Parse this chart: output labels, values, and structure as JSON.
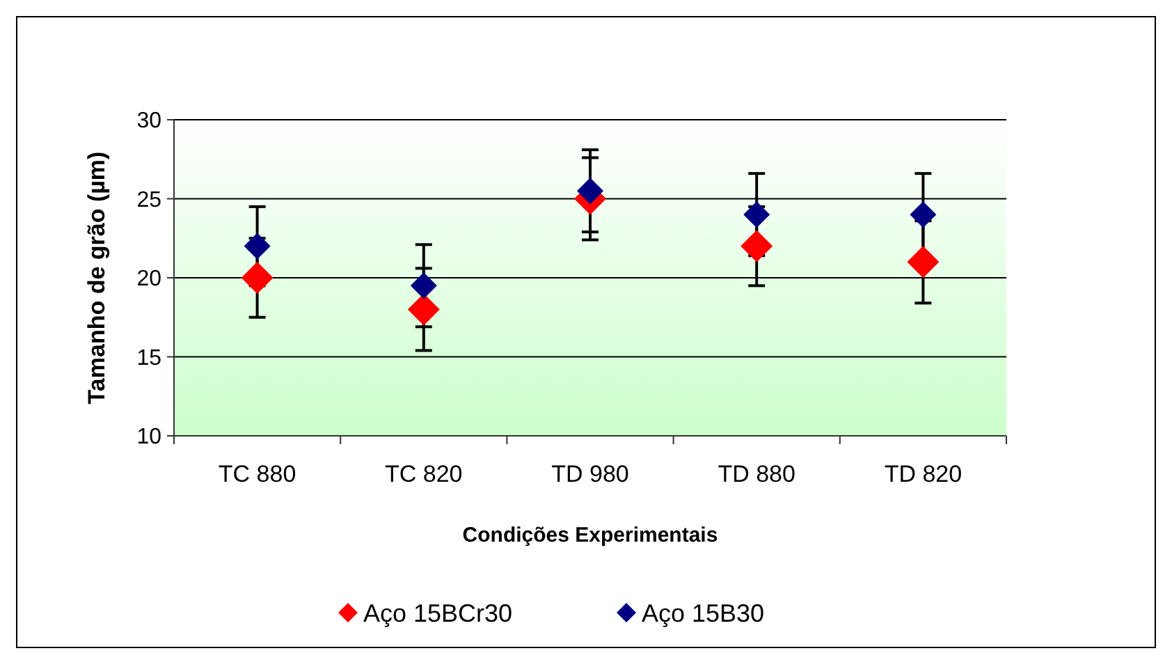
{
  "chart_data": {
    "type": "scatter",
    "xlabel": "Condições Experimentais",
    "ylabel": "Tamanho de grão (µm)",
    "categories": [
      "TC 880",
      "TC 820",
      "TD 980",
      "TD 880",
      "TD 820"
    ],
    "series": [
      {
        "name": "Aço 15BCr30",
        "color": "#ff0000",
        "values": [
          20,
          18,
          25,
          22,
          21
        ],
        "errors": [
          2.5,
          2.6,
          2.6,
          2.5,
          2.6
        ]
      },
      {
        "name": "Aço 15B30",
        "color": "#000080",
        "values": [
          22,
          19.5,
          25.5,
          24,
          24
        ],
        "errors": [
          2.5,
          2.6,
          2.6,
          2.6,
          2.6
        ]
      }
    ],
    "ylim": [
      10,
      30
    ],
    "yticks": [
      10,
      15,
      20,
      25,
      30
    ],
    "grid": "y",
    "legend": "bottom",
    "marker": "diamond"
  }
}
